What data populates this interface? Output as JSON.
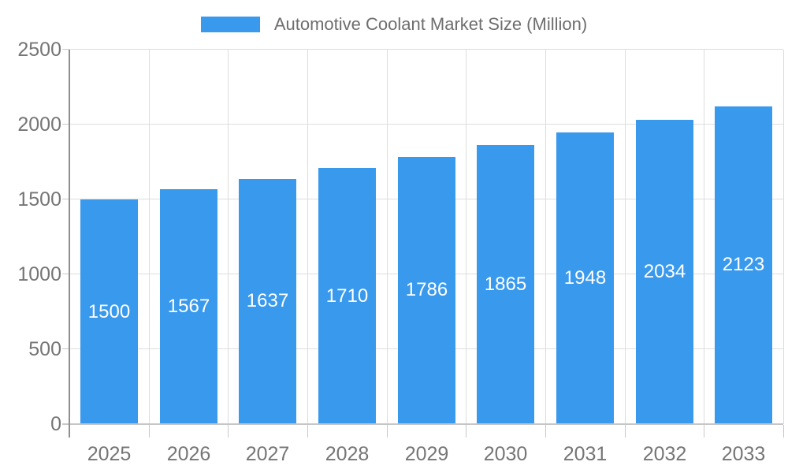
{
  "legend": {
    "label": "Automotive Coolant Market Size (Million)"
  },
  "chart_data": {
    "type": "bar",
    "title": "Automotive Coolant Market Size (Million)",
    "categories": [
      "2025",
      "2026",
      "2027",
      "2028",
      "2029",
      "2030",
      "2031",
      "2032",
      "2033"
    ],
    "values": [
      1500,
      1567,
      1637,
      1710,
      1786,
      1865,
      1948,
      2034,
      2123
    ],
    "xlabel": "",
    "ylabel": "",
    "ylim": [
      0,
      2500
    ],
    "yticks": [
      0,
      500,
      1000,
      1500,
      2000,
      2500
    ],
    "grid": true,
    "legend_position": "top-center",
    "colors": {
      "bar": "#3999ED",
      "bar_value_label": "#FFFFFF",
      "axis_text": "#757575",
      "legend_text": "#6E6E6E",
      "gridline": "#DDDDDD",
      "x_axis_line": "#C6C6C6",
      "y_axis_line": "#8F8F8F",
      "tick_mark": "#C9C9C9",
      "background": "#FFFFFF"
    }
  }
}
